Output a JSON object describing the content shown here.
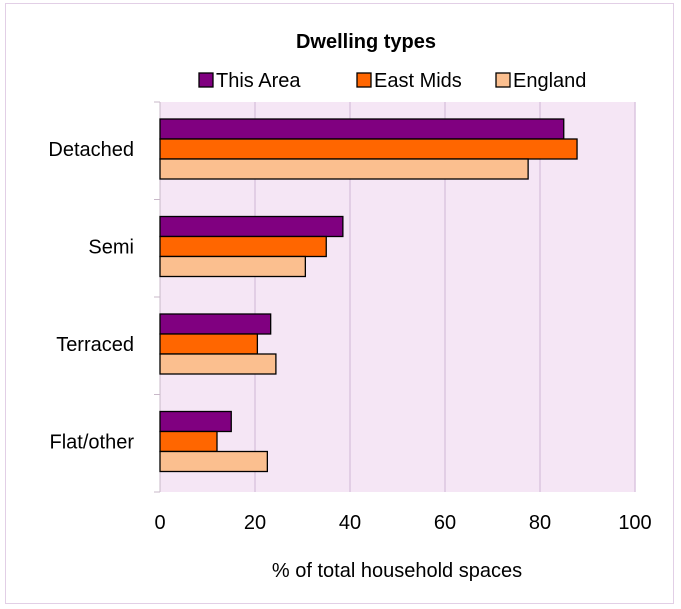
{
  "chart_data": {
    "type": "bar",
    "orientation": "horizontal",
    "title": "Dwelling types",
    "xlabel": "% of total household spaces",
    "ylabel": "",
    "categories": [
      "Detached",
      "Semi",
      "Terraced",
      "Flat/other"
    ],
    "series": [
      {
        "name": "This Area",
        "color": "#800080",
        "values": [
          85,
          38.5,
          23.3,
          15
        ]
      },
      {
        "name": "East Mids",
        "color": "#ff6600",
        "values": [
          87.8,
          35,
          20.5,
          12
        ]
      },
      {
        "name": "England",
        "color": "#fbbf8f",
        "values": [
          77.5,
          30.6,
          24.4,
          22.6
        ]
      }
    ],
    "xlim": [
      0,
      100
    ],
    "xticks": [
      "0",
      "20",
      "40",
      "60",
      "80",
      "100"
    ],
    "grid": "vertical",
    "legend_position": "top",
    "plot_background": "#f5e6f5"
  }
}
